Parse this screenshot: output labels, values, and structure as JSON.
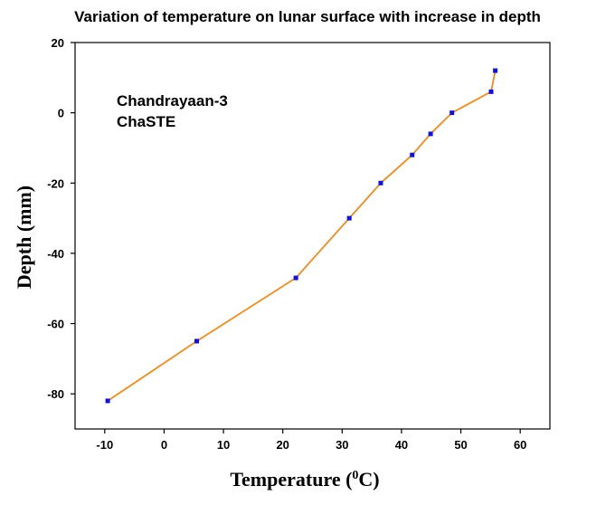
{
  "chart_data": {
    "type": "line",
    "title": "Variation of temperature on lunar surface with increase in depth",
    "xlabel": {
      "main": "Temperature (",
      "sup": "0",
      "tail": "C)"
    },
    "ylabel": "Depth (mm)",
    "xlim": [
      -15,
      65
    ],
    "ylim": [
      -90,
      20
    ],
    "xticks": [
      -10,
      0,
      10,
      20,
      30,
      40,
      50,
      60
    ],
    "yticks": [
      20,
      0,
      -20,
      -40,
      -60,
      -80
    ],
    "annotations": [
      "Chandrayaan-3",
      "ChaSTE"
    ],
    "series": [
      {
        "x": [
          -9.5,
          5.5,
          22.2,
          31.2,
          36.5,
          41.8,
          44.9,
          48.5,
          55.1,
          55.8
        ],
        "y": [
          -82,
          -65,
          -47,
          -30,
          -20,
          -12,
          -6,
          0,
          6,
          12
        ]
      }
    ],
    "colors": {
      "line": "#f08c1e",
      "marker": "#1010e0",
      "axis": "#000000"
    }
  }
}
